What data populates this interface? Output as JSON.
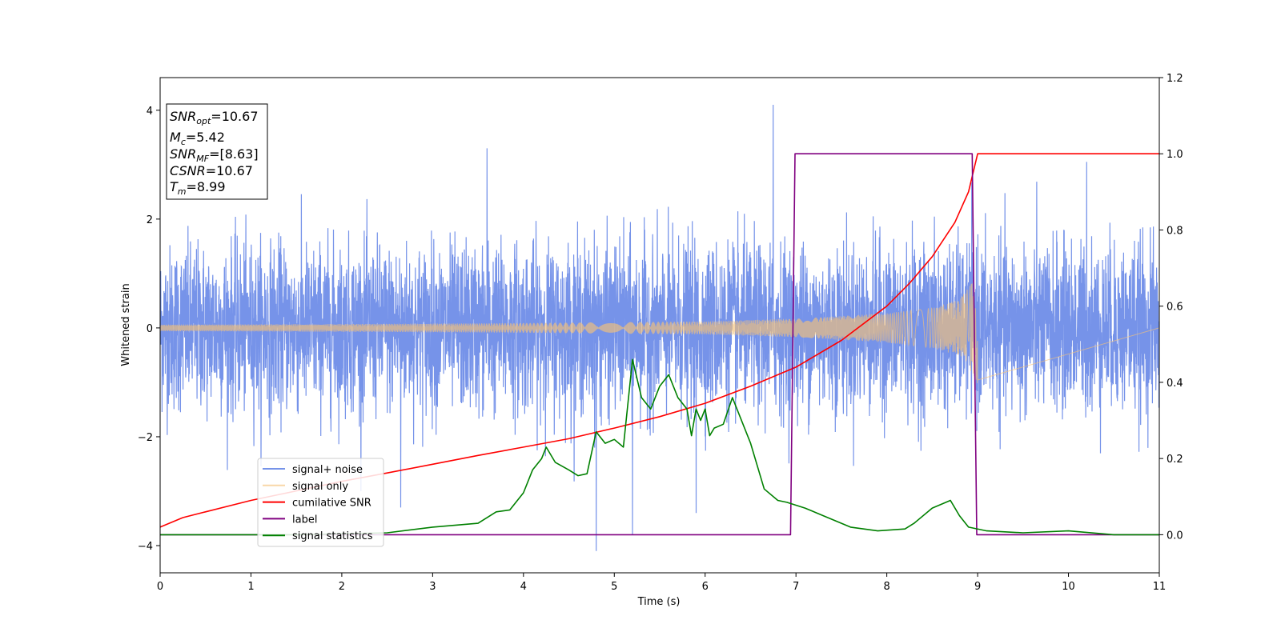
{
  "chart_data": {
    "type": "line",
    "xlabel": "Time (s)",
    "ylabel_left": "Whitened strain",
    "ylabel_right": "",
    "xlim": [
      0,
      11
    ],
    "ylim_left": [
      -4.5,
      4.6
    ],
    "ylim_right": [
      -0.1,
      1.2
    ],
    "x_ticks": [
      0,
      1,
      2,
      3,
      4,
      5,
      6,
      7,
      8,
      9,
      10,
      11
    ],
    "y_ticks_left": [
      -4,
      -2,
      0,
      2,
      4
    ],
    "y_ticks_right": [
      0.0,
      0.2,
      0.4,
      0.6,
      0.8,
      1.0,
      1.2
    ],
    "grid": false,
    "legend_position": "lower-left",
    "annotation_lines": [
      {
        "main": "SNR",
        "sub": "opt",
        "rest": "=10.67"
      },
      {
        "main": "M",
        "sub": "c",
        "rest": "=5.42"
      },
      {
        "main": "SNR",
        "sub": "MF",
        "rest": "=[8.63]"
      },
      {
        "main": "CSNR",
        "sub": "",
        "rest": "=10.67"
      },
      {
        "main": "T",
        "sub": "m",
        "rest": "=8.99"
      }
    ],
    "series": [
      {
        "name": "signal+ noise",
        "axis": "left",
        "color": "#4169e1",
        "style": "noise",
        "x_range": [
          0,
          11
        ],
        "sigma": 0.75,
        "outliers": [
          [
            3.6,
            3.3
          ],
          [
            6.75,
            4.1
          ],
          [
            4.8,
            -4.1
          ],
          [
            5.2,
            -3.8
          ],
          [
            10.2,
            3.05
          ],
          [
            2.65,
            -3.3
          ],
          [
            5.9,
            -3.4
          ]
        ]
      },
      {
        "name": "signal only",
        "axis": "left",
        "color": "#f5c27a",
        "style": "chirp",
        "x_range": [
          0,
          9.0
        ],
        "envelope": [
          [
            0,
            0.06
          ],
          [
            2,
            0.07
          ],
          [
            4,
            0.09
          ],
          [
            6,
            0.12
          ],
          [
            7,
            0.17
          ],
          [
            8,
            0.27
          ],
          [
            8.5,
            0.37
          ],
          [
            8.8,
            0.52
          ],
          [
            8.95,
            0.85
          ],
          [
            9.0,
            1.05
          ]
        ]
      },
      {
        "name": "cumilative SNR",
        "axis": "right",
        "color": "#ff0000",
        "style": "line",
        "x": [
          0,
          0.25,
          0.5,
          1,
          1.5,
          2,
          2.5,
          3,
          3.5,
          4,
          4.5,
          5,
          5.5,
          6,
          6.5,
          7,
          7.5,
          8,
          8.25,
          8.5,
          8.75,
          8.9,
          9.0,
          11
        ],
        "values": [
          0.02,
          0.045,
          0.06,
          0.09,
          0.115,
          0.14,
          0.162,
          0.185,
          0.208,
          0.23,
          0.252,
          0.28,
          0.31,
          0.345,
          0.39,
          0.44,
          0.51,
          0.6,
          0.66,
          0.73,
          0.82,
          0.9,
          1.0,
          1.0
        ]
      },
      {
        "name": "label",
        "axis": "right",
        "color": "#800080",
        "style": "line",
        "x": [
          0,
          6.94,
          6.99,
          8.94,
          8.99,
          11
        ],
        "values": [
          0,
          0,
          1,
          1,
          0,
          0
        ]
      },
      {
        "name": "signal statistics",
        "axis": "right",
        "color": "#008000",
        "style": "line",
        "x": [
          0,
          1.5,
          2.5,
          3.0,
          3.5,
          3.7,
          3.85,
          4.0,
          4.1,
          4.2,
          4.25,
          4.35,
          4.5,
          4.6,
          4.7,
          4.8,
          4.9,
          5.0,
          5.1,
          5.2,
          5.3,
          5.4,
          5.5,
          5.6,
          5.7,
          5.8,
          5.85,
          5.9,
          5.95,
          6.0,
          6.05,
          6.1,
          6.2,
          6.3,
          6.5,
          6.65,
          6.8,
          6.9,
          7.1,
          7.3,
          7.6,
          7.9,
          8.2,
          8.3,
          8.5,
          8.7,
          8.8,
          8.9,
          9.1,
          9.5,
          10.0,
          10.5,
          11.0
        ],
        "values": [
          0,
          0,
          0.005,
          0.02,
          0.03,
          0.06,
          0.065,
          0.11,
          0.17,
          0.2,
          0.23,
          0.19,
          0.17,
          0.155,
          0.16,
          0.27,
          0.24,
          0.25,
          0.23,
          0.46,
          0.36,
          0.33,
          0.39,
          0.42,
          0.36,
          0.33,
          0.26,
          0.33,
          0.3,
          0.33,
          0.26,
          0.28,
          0.29,
          0.36,
          0.24,
          0.12,
          0.09,
          0.085,
          0.07,
          0.05,
          0.02,
          0.01,
          0.015,
          0.03,
          0.07,
          0.09,
          0.05,
          0.02,
          0.01,
          0.005,
          0.01,
          0.0,
          0.0
        ]
      }
    ]
  }
}
